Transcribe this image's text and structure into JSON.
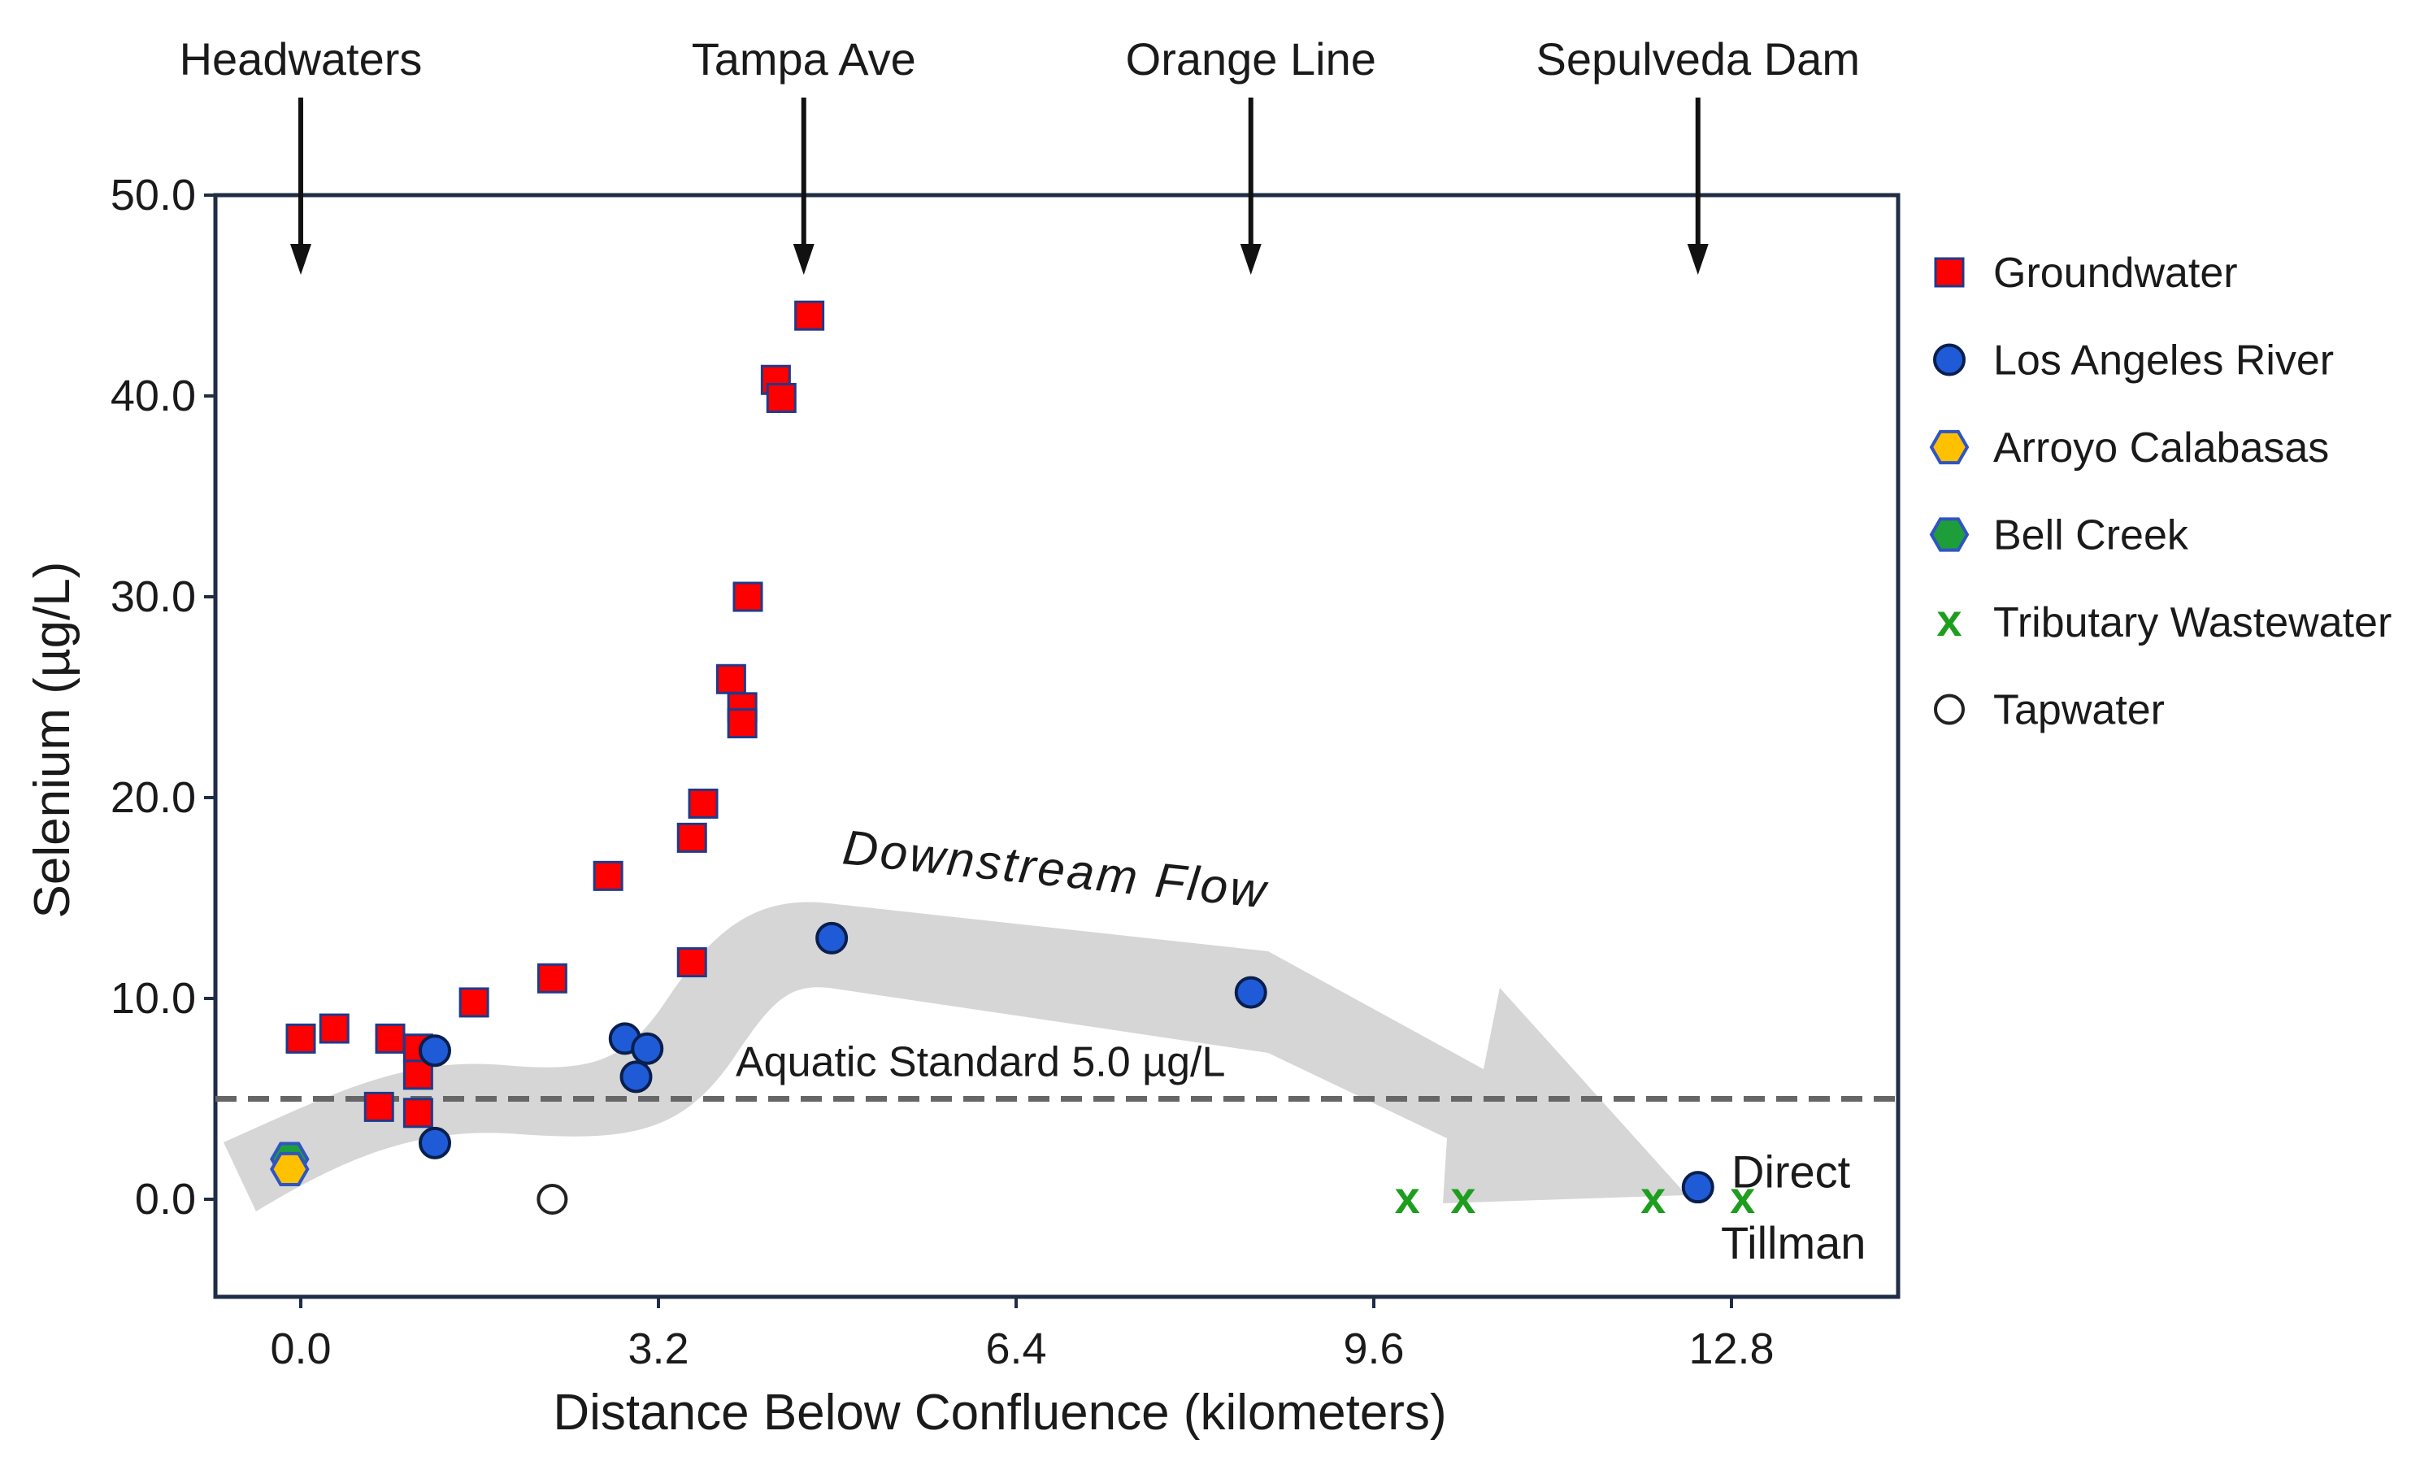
{
  "chart_data": {
    "type": "scatter",
    "xlabel": "Distance Below Confluence (kilometers)",
    "ylabel": "Selenium (µg/L)",
    "xlim": [
      -0.8,
      14.2
    ],
    "ylim": [
      -5.0,
      50.0
    ],
    "x_ticks": [
      0.0,
      3.2,
      6.4,
      9.6,
      12.8
    ],
    "x_tick_labels": [
      "0.0",
      "3.2",
      "6.4",
      "9.6",
      "12.8"
    ],
    "y_ticks": [
      0.0,
      10.0,
      20.0,
      30.0,
      40.0,
      50.0
    ],
    "y_tick_labels": [
      "0.0",
      "10.0",
      "20.0",
      "30.0",
      "40.0",
      "50.0"
    ],
    "grid": false,
    "legend_position": "right",
    "colors": {
      "frame": "#1f2d45",
      "groundwater_fill": "#ff0000",
      "groundwater_edge": "#1f3a8a",
      "river_fill": "#1f5bd6",
      "river_edge": "#0a1f4d",
      "arroyo_fill": "#ffc000",
      "arroyo_edge": "#2f55c0",
      "bell_fill": "#1e9e3a",
      "bell_edge": "#2f55c0",
      "tributary": "#1e9e1e",
      "tap_edge": "#222222",
      "flow_arrow": "#d6d6d6",
      "standard_line": "#666666"
    },
    "locations": [
      {
        "name": "Headwaters",
        "x": 0.0
      },
      {
        "name": "Tampa Ave",
        "x": 4.5
      },
      {
        "name": "Orange Line",
        "x": 8.5
      },
      {
        "name": "Sepulveda Dam",
        "x": 12.5
      }
    ],
    "reference_line": {
      "y": 5.0,
      "label": "Aquatic Standard 5.0 µg/L"
    },
    "flow_label": "Downstream Flow",
    "point_annotation": {
      "lines": [
        "Direct",
        "Tillman"
      ],
      "x": 12.5,
      "y": 0.5
    },
    "series": [
      {
        "name": "Groundwater",
        "marker": "square",
        "points": [
          [
            0.0,
            8.0
          ],
          [
            0.3,
            8.5
          ],
          [
            0.8,
            8.0
          ],
          [
            1.05,
            7.5
          ],
          [
            1.05,
            6.2
          ],
          [
            0.7,
            4.6
          ],
          [
            1.05,
            4.3
          ],
          [
            1.55,
            9.8
          ],
          [
            2.25,
            11.0
          ],
          [
            2.75,
            16.1
          ],
          [
            3.5,
            11.8
          ],
          [
            3.5,
            18.0
          ],
          [
            3.6,
            19.7
          ],
          [
            3.85,
            25.9
          ],
          [
            3.95,
            24.5
          ],
          [
            3.95,
            23.7
          ],
          [
            4.0,
            30.0
          ],
          [
            4.25,
            40.8
          ],
          [
            4.3,
            39.9
          ],
          [
            4.55,
            44.0
          ]
        ]
      },
      {
        "name": "Los Angeles River",
        "marker": "circle",
        "points": [
          [
            1.2,
            7.4
          ],
          [
            1.2,
            2.8
          ],
          [
            2.9,
            8.0
          ],
          [
            3.0,
            6.1
          ],
          [
            3.1,
            7.5
          ],
          [
            4.75,
            13.0
          ],
          [
            8.5,
            10.3
          ],
          [
            12.5,
            0.6
          ]
        ]
      },
      {
        "name": "Arroyo Calabasas",
        "marker": "hexagon",
        "points": [
          [
            -0.1,
            1.5
          ]
        ]
      },
      {
        "name": "Bell Creek",
        "marker": "hexagon",
        "points": [
          [
            -0.1,
            2.0
          ]
        ]
      },
      {
        "name": "Tributary Wastewater",
        "marker": "x",
        "points": [
          [
            9.9,
            0.0
          ],
          [
            10.4,
            0.0
          ],
          [
            12.1,
            0.0
          ],
          [
            12.9,
            0.0
          ]
        ]
      },
      {
        "name": "Tapwater",
        "marker": "open-circle",
        "points": [
          [
            2.25,
            0.0
          ]
        ]
      }
    ]
  }
}
